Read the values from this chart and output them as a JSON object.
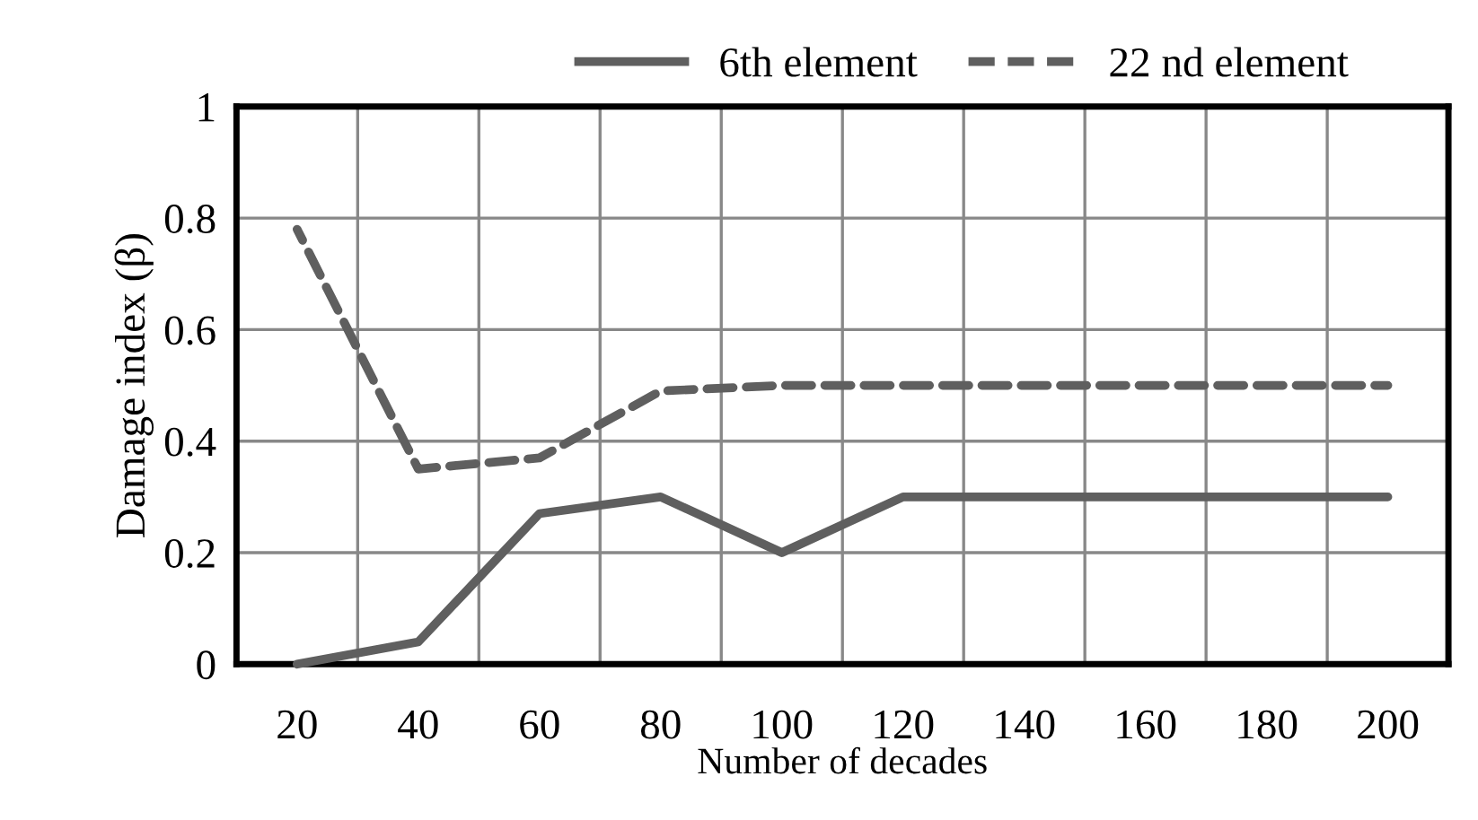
{
  "chart_data": {
    "type": "line",
    "xlabel": "Number of decades",
    "ylabel": "Damage index (β)",
    "categories": [
      "20",
      "40",
      "60",
      "80",
      "100",
      "120",
      "140",
      "160",
      "180",
      "200"
    ],
    "series": [
      {
        "name": "6th element",
        "color": "#5f5f5f",
        "line_style": "solid",
        "values": [
          0,
          0.04,
          0.27,
          0.3,
          0.2,
          0.3,
          0.3,
          0.3,
          0.3,
          0.3
        ]
      },
      {
        "name": "22 nd element",
        "color": "#5f5f5f",
        "line_style": "dashed",
        "values": [
          0.78,
          0.35,
          0.37,
          0.49,
          0.5,
          0.5,
          0.5,
          0.5,
          0.5,
          0.5
        ]
      }
    ],
    "ylim": [
      0,
      1
    ],
    "yticks": [
      0,
      0.2,
      0.4,
      0.6,
      0.8,
      1
    ],
    "grid": true,
    "legend": "top",
    "marker": "none"
  }
}
